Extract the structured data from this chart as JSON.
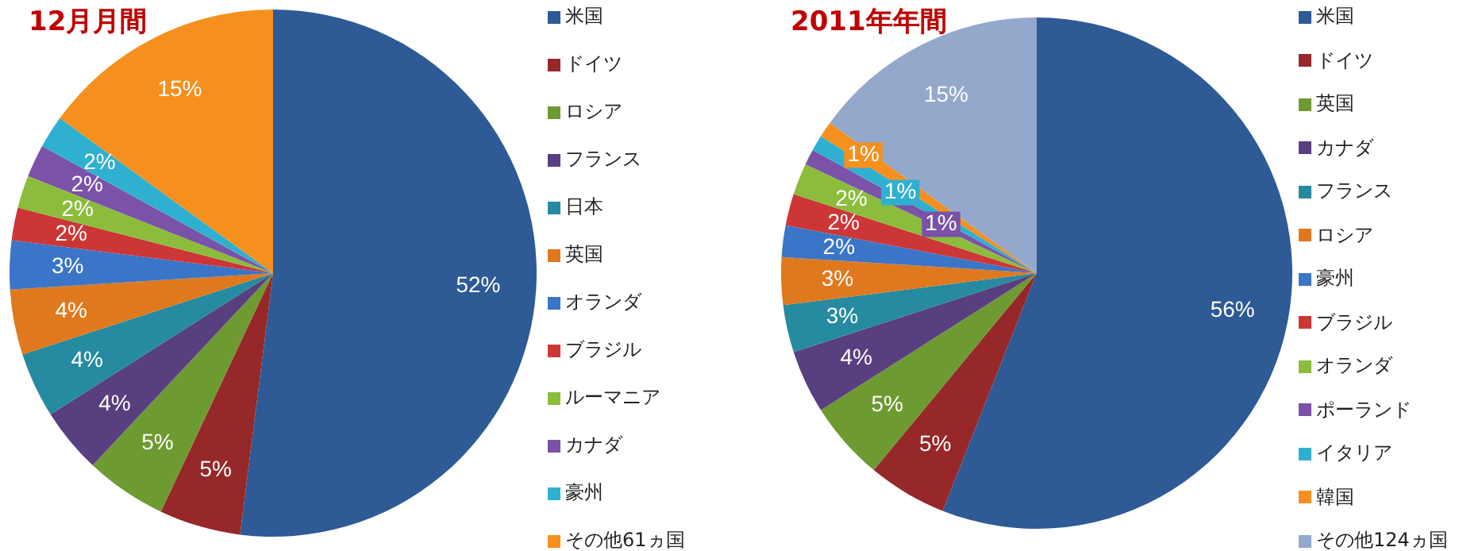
{
  "chart_data": [
    {
      "type": "pie",
      "title": "12月月間",
      "legend": "right",
      "categories": [
        "米国",
        "ドイツ",
        "ロシア",
        "フランス",
        "日本",
        "英国",
        "オランダ",
        "ブラジル",
        "ルーマニア",
        "カナダ",
        "豪州",
        "その他61ヵ国"
      ],
      "values": [
        52,
        5,
        5,
        4,
        4,
        4,
        3,
        2,
        2,
        2,
        2,
        15
      ],
      "value_labels": [
        "52%",
        "5%",
        "5%",
        "4%",
        "4%",
        "4%",
        "3%",
        "2%",
        "2%",
        "2%",
        "2%",
        "15%"
      ],
      "colors": [
        "#2e5a96",
        "#96282a",
        "#6e9a32",
        "#583f80",
        "#268aa0",
        "#e0781e",
        "#3a75c8",
        "#cc3636",
        "#8cbc3c",
        "#7a52a8",
        "#30b0d0",
        "#f5901e"
      ]
    },
    {
      "type": "pie",
      "title": "2011年年間",
      "legend": "right",
      "categories": [
        "米国",
        "ドイツ",
        "英国",
        "カナダ",
        "フランス",
        "ロシア",
        "豪州",
        "ブラジル",
        "オランダ",
        "ポーランド",
        "イタリア",
        "韓国",
        "その他124ヵ国"
      ],
      "values": [
        56,
        5,
        5,
        4,
        3,
        3,
        2,
        2,
        2,
        1,
        1,
        1,
        15
      ],
      "value_labels": [
        "56%",
        "5%",
        "5%",
        "4%",
        "3%",
        "3%",
        "2%",
        "2%",
        "2%",
        "1%",
        "1%",
        "1%",
        "15%"
      ],
      "colors": [
        "#2e5a96",
        "#96282a",
        "#6e9a32",
        "#583f80",
        "#268aa0",
        "#e0781e",
        "#3a75c8",
        "#cc3636",
        "#8cbc3c",
        "#7a52a8",
        "#30b0d0",
        "#f5901e",
        "#94a8cc"
      ]
    }
  ]
}
